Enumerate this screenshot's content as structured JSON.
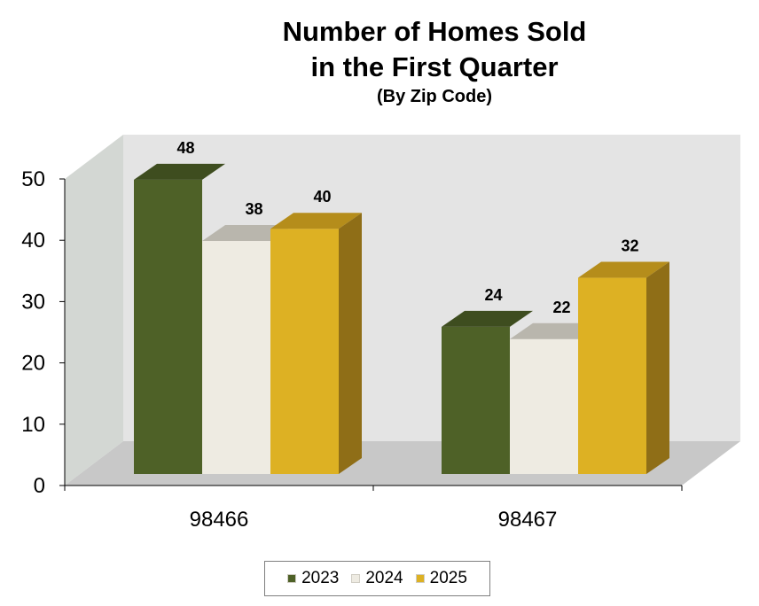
{
  "chart_data": {
    "type": "bar",
    "title": "Number of Homes Sold",
    "title_line2": "in the First Quarter",
    "subtitle": "(By Zip Code)",
    "categories": [
      "98466",
      "98467"
    ],
    "series": [
      {
        "name": "2023",
        "values": [
          48,
          24
        ],
        "color": "#4e6127",
        "side_color": "#2d3a14",
        "top_color": "#3e4d1f"
      },
      {
        "name": "2024",
        "values": [
          38,
          22
        ],
        "color": "#eeebe2",
        "side_color": "#b9b6ad",
        "top_color": "#b9b6ad"
      },
      {
        "name": "2025",
        "values": [
          40,
          32
        ],
        "color": "#ddb123",
        "side_color": "#8f6e17",
        "top_color": "#b58d1b"
      }
    ],
    "ylim": [
      0,
      50
    ],
    "yticks": [
      "0",
      "10",
      "20",
      "30",
      "40",
      "50"
    ],
    "xlabel": "",
    "ylabel": "",
    "grid": false,
    "legend_position": "bottom",
    "style": "3d"
  }
}
